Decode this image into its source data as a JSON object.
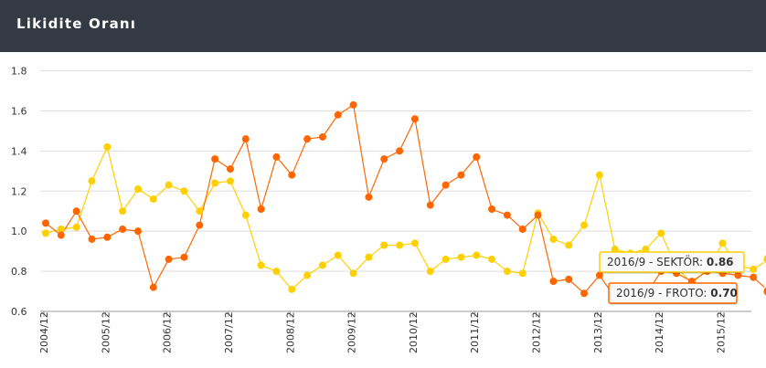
{
  "header": {
    "title": "Likidite Oranı"
  },
  "colors": {
    "froto": "#ff6600",
    "sektor": "#ffd000",
    "header_bg": "#333a44",
    "grid": "#dddddd"
  },
  "chart_data": {
    "type": "line",
    "title": "Likidite Oranı",
    "xlabel": "",
    "ylabel": "",
    "ylim": [
      0.6,
      1.8
    ],
    "yticks": [
      "0.6",
      "0.8",
      "1.0",
      "1.2",
      "1.4",
      "1.6",
      "1.8"
    ],
    "xtick_labels": [
      "2004/12",
      "2005/12",
      "2006/12",
      "2007/12",
      "2008/12",
      "2009/12",
      "2010/12",
      "2011/12",
      "2012/12",
      "2013/12",
      "2014/12",
      "2015/12"
    ],
    "x": [
      "2004/12",
      "2005/3",
      "2005/6",
      "2005/9",
      "2005/12",
      "2006/3",
      "2006/6",
      "2006/9",
      "2006/12",
      "2007/3",
      "2007/6",
      "2007/9",
      "2007/12",
      "2008/3",
      "2008/6",
      "2008/9",
      "2008/12",
      "2009/3",
      "2009/6",
      "2009/9",
      "2009/12",
      "2010/3",
      "2010/6",
      "2010/9",
      "2010/12",
      "2011/3",
      "2011/6",
      "2011/9",
      "2011/12",
      "2012/3",
      "2012/6",
      "2012/9",
      "2012/12",
      "2013/3",
      "2013/6",
      "2013/9",
      "2013/12",
      "2014/3",
      "2014/6",
      "2014/9",
      "2014/12",
      "2015/3",
      "2015/6",
      "2015/9",
      "2015/12",
      "2016/3",
      "2016/6",
      "2016/9"
    ],
    "grid": true,
    "series": [
      {
        "name": "FROTO",
        "color": "#ff6600",
        "values": [
          1.04,
          0.98,
          1.1,
          0.96,
          0.97,
          1.01,
          1.0,
          0.72,
          0.86,
          0.87,
          1.03,
          1.36,
          1.31,
          1.46,
          1.11,
          1.37,
          1.28,
          1.46,
          1.47,
          1.58,
          1.63,
          1.17,
          1.36,
          1.4,
          1.56,
          1.13,
          1.23,
          1.28,
          1.37,
          1.11,
          1.08,
          1.01,
          1.08,
          0.75,
          0.76,
          0.69,
          0.78,
          0.67,
          0.68,
          0.68,
          0.8,
          0.79,
          0.75,
          0.8,
          0.79,
          0.78,
          0.77,
          0.7
        ]
      },
      {
        "name": "SEKTÖR",
        "color": "#ffd000",
        "values": [
          0.99,
          1.01,
          1.02,
          1.25,
          1.42,
          1.1,
          1.21,
          1.16,
          1.23,
          1.2,
          1.1,
          1.24,
          1.25,
          1.08,
          0.83,
          0.8,
          0.71,
          0.78,
          0.83,
          0.88,
          0.79,
          0.87,
          0.93,
          0.93,
          0.94,
          0.8,
          0.86,
          0.87,
          0.88,
          0.86,
          0.8,
          0.79,
          1.09,
          0.96,
          0.93,
          1.03,
          1.28,
          0.91,
          0.89,
          0.91,
          0.99,
          0.82,
          0.74,
          0.81,
          0.94,
          0.83,
          0.81,
          0.86
        ]
      }
    ],
    "tooltips": [
      {
        "series": "SEKTÖR",
        "label": "2016/9 - SEKTÖR: ",
        "value": "0.86"
      },
      {
        "series": "FROTO",
        "label": "2016/9 - FROTO: ",
        "value": "0.70"
      }
    ]
  }
}
